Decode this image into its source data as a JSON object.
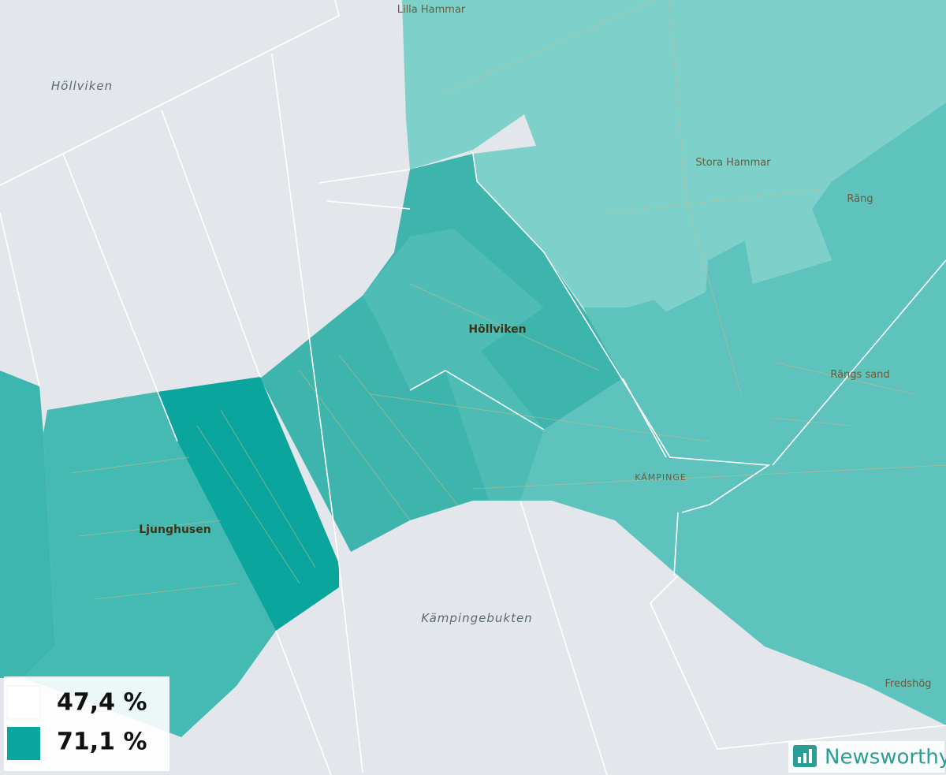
{
  "places": [
    "Lilla Hammar",
    "Höllviken",
    "Stora Hammar",
    "Räng",
    "Höllviken",
    "Rängs sand",
    "KÄMPINGE",
    "Ljunghusen",
    "Kämpingebukten",
    "Fredshög"
  ],
  "legend": {
    "items": [
      {
        "label": "47,4 %",
        "color": "#ffffff"
      },
      {
        "label": "71,1 %",
        "color": "#0aa59d"
      }
    ]
  },
  "brand": "Newsworthy"
}
